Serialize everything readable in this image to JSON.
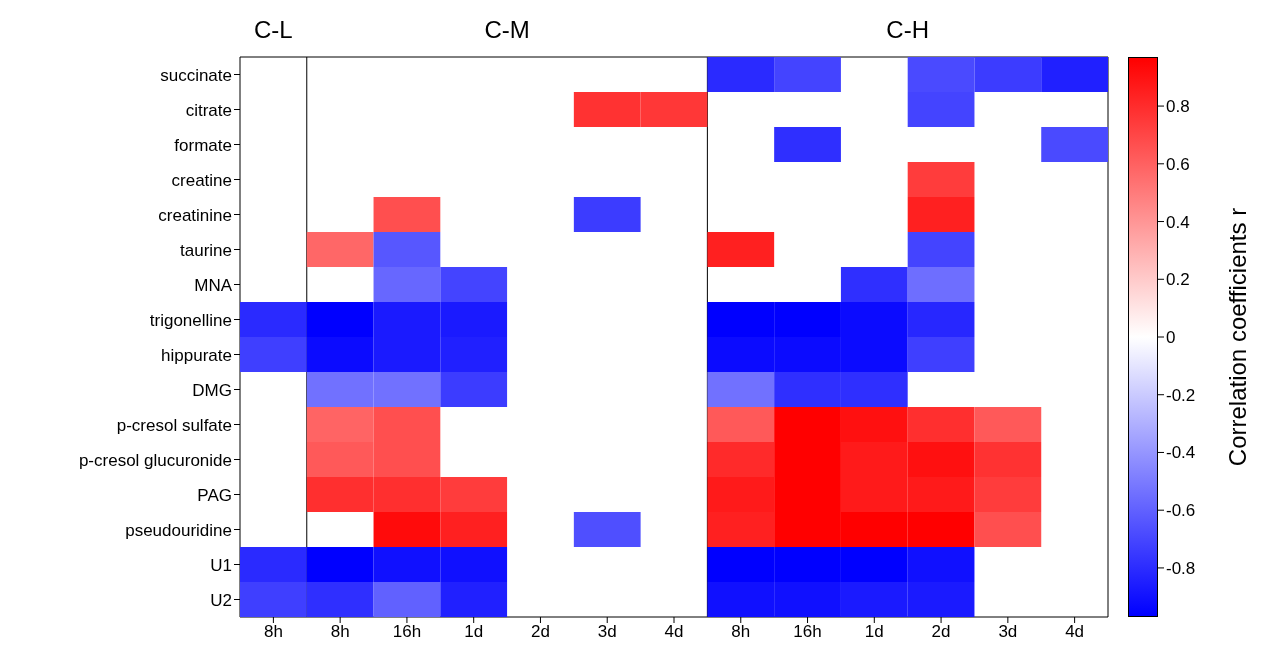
{
  "chart_data": {
    "type": "heatmap",
    "clabel": "Correlation coefficients r",
    "annotations": [
      "C-L",
      "C-M",
      "C-H"
    ],
    "categories": [
      "8h",
      "8h",
      "16h",
      "1d",
      "2d",
      "3d",
      "4d",
      "8h",
      "16h",
      "1d",
      "2d",
      "3d",
      "4d"
    ],
    "y_categories": [
      "succinate",
      "citrate",
      "formate",
      "creatine",
      "creatinine",
      "taurine",
      "MNA",
      "trigonelline",
      "hippurate",
      "DMG",
      "p-cresol sulfate",
      "p-cresol glucuronide",
      "PAG",
      "pseudouridine",
      "U1",
      "U2"
    ],
    "cells": [
      [
        null,
        null,
        null,
        null,
        null,
        null,
        null,
        -0.81,
        -0.71,
        null,
        -0.69,
        -0.74,
        -0.85
      ],
      [
        null,
        null,
        null,
        null,
        null,
        0.78,
        0.76,
        null,
        null,
        null,
        -0.71,
        null,
        null
      ],
      [
        null,
        null,
        null,
        null,
        null,
        null,
        null,
        null,
        -0.79,
        null,
        null,
        null,
        -0.69
      ],
      [
        null,
        null,
        null,
        null,
        null,
        null,
        null,
        null,
        null,
        null,
        0.74,
        null,
        null
      ],
      [
        null,
        null,
        0.67,
        null,
        null,
        -0.74,
        null,
        null,
        null,
        null,
        0.85,
        null,
        null
      ],
      [
        null,
        0.58,
        -0.64,
        null,
        null,
        null,
        null,
        0.85,
        null,
        null,
        -0.71,
        null,
        null
      ],
      [
        null,
        null,
        -0.58,
        -0.71,
        null,
        null,
        null,
        null,
        null,
        -0.79,
        -0.55,
        null,
        null
      ],
      [
        -0.81,
        -0.97,
        -0.87,
        -0.87,
        null,
        null,
        null,
        -0.97,
        -0.97,
        -0.93,
        -0.82,
        null,
        null
      ],
      [
        -0.73,
        -0.93,
        -0.87,
        -0.85,
        null,
        null,
        null,
        -0.93,
        -0.93,
        -0.93,
        -0.73,
        null,
        null
      ],
      [
        null,
        -0.54,
        -0.54,
        -0.74,
        null,
        null,
        null,
        -0.54,
        -0.79,
        -0.79,
        null,
        null,
        null
      ],
      [
        null,
        0.59,
        0.67,
        null,
        null,
        null,
        null,
        0.63,
        0.97,
        0.91,
        0.79,
        0.63,
        null
      ],
      [
        null,
        0.63,
        0.67,
        null,
        null,
        null,
        null,
        0.81,
        0.97,
        0.87,
        0.91,
        0.78,
        null
      ],
      [
        null,
        0.79,
        0.79,
        0.74,
        null,
        null,
        null,
        0.87,
        0.97,
        0.87,
        0.87,
        0.74,
        null
      ],
      [
        null,
        null,
        0.93,
        0.85,
        null,
        -0.67,
        null,
        0.85,
        0.97,
        0.97,
        0.97,
        0.67,
        null
      ],
      [
        -0.81,
        -0.97,
        -0.91,
        -0.91,
        null,
        null,
        null,
        -0.97,
        -0.97,
        -0.97,
        -0.91,
        null,
        null
      ],
      [
        -0.73,
        -0.79,
        -0.6,
        -0.85,
        null,
        null,
        null,
        -0.91,
        -0.91,
        -0.87,
        -0.87,
        null,
        null
      ]
    ],
    "clim": [
      -0.97,
      0.97
    ],
    "cticks": [
      -0.8,
      -0.6,
      -0.4,
      -0.2,
      0,
      0.2,
      0.4,
      0.6,
      0.8
    ]
  }
}
